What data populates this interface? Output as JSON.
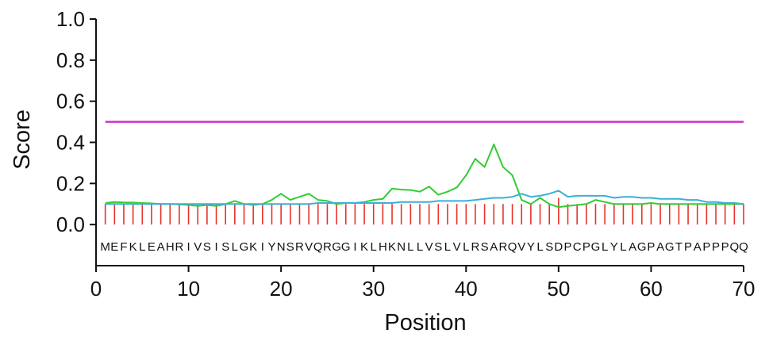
{
  "chart_data": {
    "type": "line",
    "title": "",
    "xlabel": "Position",
    "ylabel": "Score",
    "xlim": [
      0,
      70
    ],
    "ylim": [
      -0.2,
      1.0
    ],
    "xticks": [
      "0",
      "10",
      "20",
      "30",
      "40",
      "50",
      "60",
      "70"
    ],
    "yticks": [
      "0.0",
      "0.2",
      "0.4",
      "0.6",
      "0.8",
      "1.0"
    ],
    "sequence": "MEFKLEAHRIVSISLGKIYNSRVQRGGIKLHKNLLVSLVLRSARQVYLSDPCPGLYLAGPAGTPAPPPQQ",
    "threshold": {
      "y": 0.5,
      "color": "#cc33cc"
    },
    "bars": {
      "color": "#e8322b",
      "x_start": 1,
      "x_end": 70,
      "values": [
        0.1,
        0.1,
        0.1,
        0.1,
        0.1,
        0.1,
        0.1,
        0.1,
        0.1,
        0.1,
        0.1,
        0.1,
        0.1,
        0.1,
        0.1,
        0.1,
        0.1,
        0.1,
        0.1,
        0.1,
        0.1,
        0.1,
        0.1,
        0.1,
        0.1,
        0.1,
        0.1,
        0.1,
        0.1,
        0.1,
        0.1,
        0.1,
        0.1,
        0.1,
        0.1,
        0.1,
        0.1,
        0.1,
        0.1,
        0.1,
        0.1,
        0.1,
        0.1,
        0.1,
        0.1,
        0.1,
        0.1,
        0.1,
        0.1,
        0.13,
        0.1,
        0.1,
        0.1,
        0.1,
        0.1,
        0.1,
        0.1,
        0.1,
        0.1,
        0.1,
        0.1,
        0.1,
        0.1,
        0.1,
        0.1,
        0.1,
        0.1,
        0.1,
        0.1,
        0.1
      ]
    },
    "series": [
      {
        "color": "#33cc33",
        "x": [
          1,
          2,
          3,
          4,
          5,
          6,
          7,
          8,
          9,
          10,
          11,
          12,
          13,
          14,
          15,
          16,
          17,
          18,
          19,
          20,
          21,
          22,
          23,
          24,
          25,
          26,
          27,
          28,
          29,
          30,
          31,
          32,
          33,
          34,
          35,
          36,
          37,
          38,
          39,
          40,
          41,
          42,
          43,
          44,
          45,
          46,
          47,
          48,
          49,
          50,
          51,
          52,
          53,
          54,
          55,
          56,
          57,
          58,
          59,
          60,
          61,
          62,
          63,
          64,
          65,
          66,
          67,
          68,
          69,
          70
        ],
        "values": [
          0.105,
          0.11,
          0.108,
          0.107,
          0.105,
          0.103,
          0.1,
          0.1,
          0.098,
          0.095,
          0.09,
          0.095,
          0.09,
          0.1,
          0.115,
          0.1,
          0.095,
          0.1,
          0.12,
          0.15,
          0.12,
          0.135,
          0.15,
          0.12,
          0.115,
          0.1,
          0.105,
          0.105,
          0.11,
          0.12,
          0.125,
          0.175,
          0.17,
          0.168,
          0.16,
          0.185,
          0.145,
          0.16,
          0.18,
          0.24,
          0.32,
          0.28,
          0.39,
          0.28,
          0.24,
          0.12,
          0.1,
          0.13,
          0.1,
          0.085,
          0.09,
          0.095,
          0.1,
          0.12,
          0.11,
          0.1,
          0.1,
          0.1,
          0.1,
          0.105,
          0.1,
          0.1,
          0.1,
          0.1,
          0.1,
          0.1,
          0.1,
          0.1,
          0.1,
          0.1
        ]
      },
      {
        "color": "#3ab0d6",
        "x": [
          1,
          2,
          3,
          4,
          5,
          6,
          7,
          8,
          9,
          10,
          11,
          12,
          13,
          14,
          15,
          16,
          17,
          18,
          19,
          20,
          21,
          22,
          23,
          24,
          25,
          26,
          27,
          28,
          29,
          30,
          31,
          32,
          33,
          34,
          35,
          36,
          37,
          38,
          39,
          40,
          41,
          42,
          43,
          44,
          45,
          46,
          47,
          48,
          49,
          50,
          51,
          52,
          53,
          54,
          55,
          56,
          57,
          58,
          59,
          60,
          61,
          62,
          63,
          64,
          65,
          66,
          67,
          68,
          69,
          70
        ],
        "values": [
          0.1,
          0.1,
          0.1,
          0.1,
          0.1,
          0.1,
          0.1,
          0.1,
          0.1,
          0.1,
          0.1,
          0.1,
          0.1,
          0.1,
          0.1,
          0.1,
          0.1,
          0.1,
          0.1,
          0.1,
          0.1,
          0.1,
          0.1,
          0.105,
          0.105,
          0.105,
          0.105,
          0.105,
          0.105,
          0.105,
          0.105,
          0.105,
          0.11,
          0.11,
          0.11,
          0.11,
          0.115,
          0.115,
          0.115,
          0.115,
          0.12,
          0.125,
          0.13,
          0.13,
          0.135,
          0.15,
          0.135,
          0.14,
          0.15,
          0.165,
          0.135,
          0.14,
          0.14,
          0.14,
          0.14,
          0.13,
          0.135,
          0.135,
          0.13,
          0.13,
          0.125,
          0.125,
          0.125,
          0.12,
          0.12,
          0.11,
          0.11,
          0.105,
          0.105,
          0.1
        ]
      }
    ]
  }
}
